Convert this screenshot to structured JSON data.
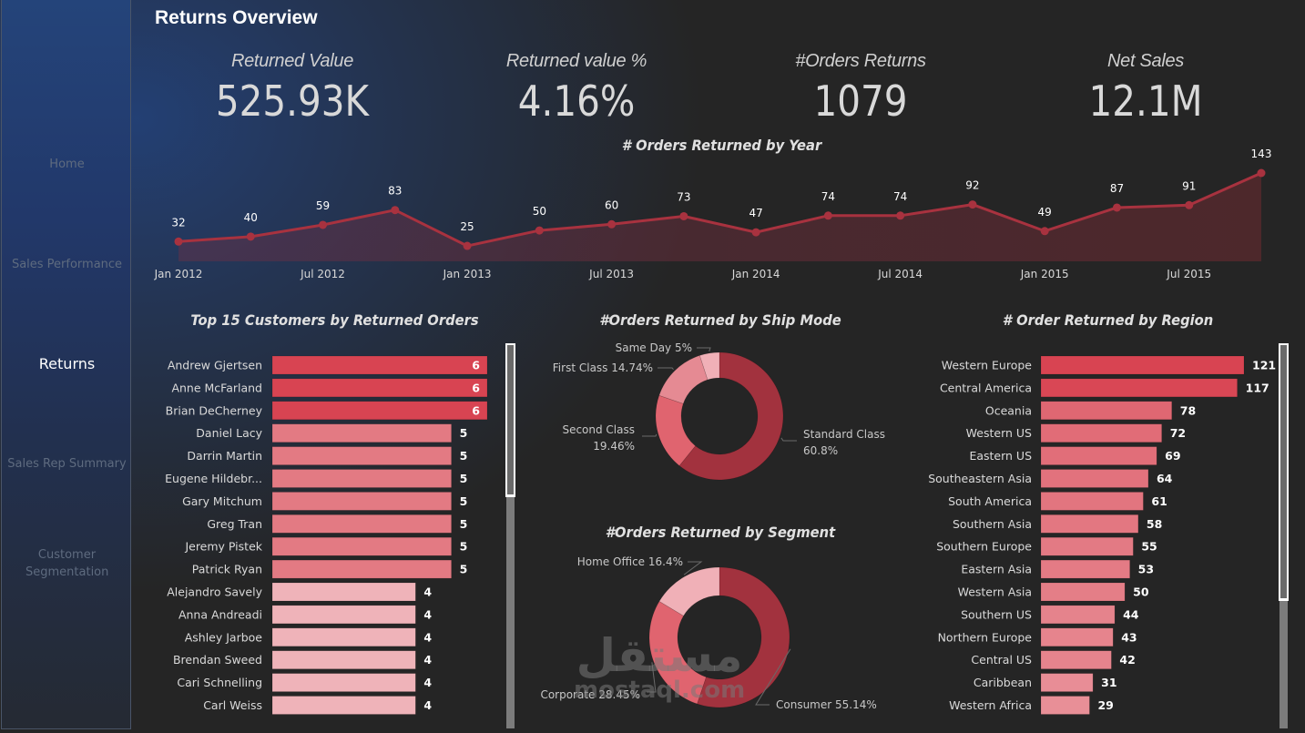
{
  "page": {
    "title": "Returns Overview"
  },
  "sidebar": {
    "items": [
      {
        "label": "Home",
        "active": false
      },
      {
        "label": "Sales Performance",
        "active": false
      },
      {
        "label": "Returns",
        "active": true
      },
      {
        "label": "Sales Rep Summary",
        "active": false
      },
      {
        "label": "Customer Segmentation",
        "active": false
      }
    ]
  },
  "kpis": [
    {
      "label": "Returned Value",
      "value": "525.93K"
    },
    {
      "label": "Returned value %",
      "value": "4.16%"
    },
    {
      "label": "#Orders Returns",
      "value": "1079"
    },
    {
      "label": "Net Sales",
      "value": "12.1M"
    }
  ],
  "colors": {
    "line": "#a8323f",
    "area": "rgba(140,40,55,0.35)",
    "bar_high": "#d84452",
    "bar_mid": "#e37a83",
    "bar_low": "#efb3b9",
    "donut_dark": "#a2323e",
    "donut_mid": "#e0646f",
    "donut_light": "#f0b0b7"
  },
  "watermark": {
    "arabic": "مستقل",
    "latin": "mostaql.com"
  },
  "chart_data": [
    {
      "id": "orders-by-year",
      "type": "line",
      "title": "# Orders Returned by Year",
      "x": [
        "Jan 2012",
        "Apr 2012",
        "Jul 2012",
        "Oct 2012",
        "Jan 2013",
        "Apr 2013",
        "Jul 2013",
        "Oct 2013",
        "Jan 2014",
        "Apr 2014",
        "Jul 2014",
        "Oct 2014",
        "Jan 2015",
        "Apr 2015",
        "Jul 2015",
        "Oct 2015"
      ],
      "values": [
        32,
        40,
        59,
        83,
        25,
        50,
        60,
        73,
        47,
        74,
        74,
        92,
        49,
        87,
        91,
        143
      ],
      "x_tick_labels": [
        "Jan 2012",
        "Jul 2012",
        "Jan 2013",
        "Jul 2013",
        "Jan 2014",
        "Jul 2014",
        "Jan 2015",
        "Jul 2015"
      ],
      "xlabel": "",
      "ylabel": "",
      "ylim": [
        0,
        143
      ],
      "grid": false,
      "area_fill": true
    },
    {
      "id": "top-customers",
      "type": "bar",
      "orientation": "horizontal",
      "title": "Top 15 Customers by Returned Orders",
      "categories": [
        "Andrew Gjertsen",
        "Anne McFarland",
        "Brian DeCherney",
        "Daniel Lacy",
        "Darrin Martin",
        "Eugene Hildebr...",
        "Gary Mitchum",
        "Greg Tran",
        "Jeremy Pistek",
        "Patrick Ryan",
        "Alejandro Savely",
        "Anna Andreadi",
        "Ashley Jarboe",
        "Brendan Sweed",
        "Cari Schnelling",
        "Carl Weiss"
      ],
      "values": [
        6,
        6,
        6,
        5,
        5,
        5,
        5,
        5,
        5,
        5,
        4,
        4,
        4,
        4,
        4,
        4
      ],
      "xlim": [
        0,
        6
      ],
      "scroll_position": 0.0,
      "scroll_visible_fraction": 0.4
    },
    {
      "id": "ship-mode",
      "type": "pie",
      "donut": true,
      "title": "#Orders Returned by Ship Mode",
      "categories": [
        "Standard Class",
        "Second Class",
        "First Class",
        "Same Day"
      ],
      "values": [
        60.8,
        19.46,
        14.74,
        5.0
      ],
      "labels": [
        "Standard Class 60.8%",
        "Second Class 19.46%",
        "First Class 14.74%",
        "Same Day 5%"
      ]
    },
    {
      "id": "segment",
      "type": "pie",
      "donut": true,
      "title": "#Orders Returned by Segment",
      "categories": [
        "Consumer",
        "Corporate",
        "Home Office"
      ],
      "values": [
        55.14,
        28.45,
        16.4
      ],
      "labels": [
        "Consumer 55.14%",
        "Corporate 28.45%",
        "Home Office 16.4%"
      ]
    },
    {
      "id": "region",
      "type": "bar",
      "orientation": "horizontal",
      "title": "# Order Returned by Region",
      "categories": [
        "Western Europe",
        "Central America",
        "Oceania",
        "Western US",
        "Eastern US",
        "Southeastern Asia",
        "South America",
        "Southern Asia",
        "Southern Europe",
        "Eastern Asia",
        "Western Asia",
        "Southern US",
        "Northern Europe",
        "Central US",
        "Caribbean",
        "Western Africa"
      ],
      "values": [
        121,
        117,
        78,
        72,
        69,
        64,
        61,
        58,
        55,
        53,
        50,
        44,
        43,
        42,
        31,
        29
      ],
      "xlim": [
        0,
        121
      ],
      "scroll_position": 0.0,
      "scroll_visible_fraction": 0.67
    }
  ]
}
